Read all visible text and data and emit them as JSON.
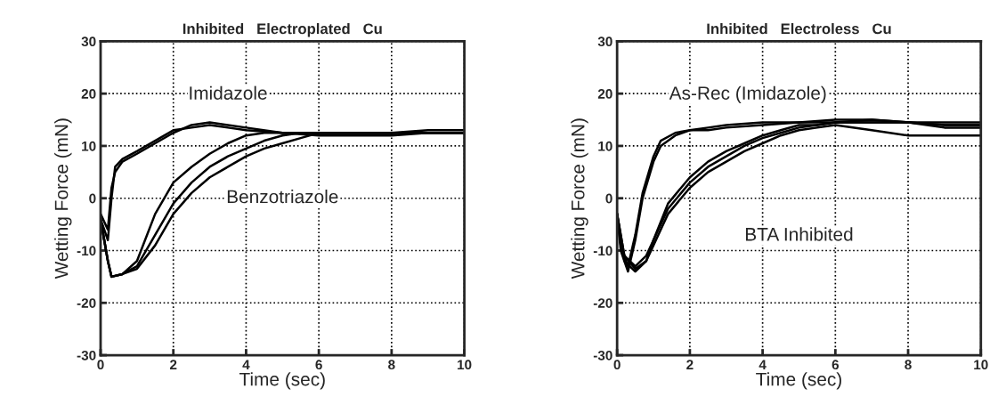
{
  "chart_data": [
    {
      "type": "line",
      "title": "Inhibited   Electroplated   Cu",
      "xlabel": "Time (sec)",
      "ylabel": "Wetting Force (mN)",
      "xlim": [
        0,
        10
      ],
      "ylim": [
        -30,
        30
      ],
      "xticks": [
        0,
        2,
        4,
        6,
        8,
        10
      ],
      "yticks": [
        -30,
        -20,
        -10,
        0,
        10,
        20,
        30
      ],
      "grid": true,
      "line_style": "solid",
      "annotations": [
        "Imidazole",
        "Benzotriazole"
      ],
      "series": [
        {
          "color": "#000000",
          "x": [
            0,
            0.2,
            0.3,
            0.4,
            0.6,
            1,
            1.5,
            2,
            2.5,
            3,
            3.5,
            4,
            5,
            6,
            7,
            8,
            9,
            10
          ],
          "values": [
            -4,
            -8,
            0,
            6,
            7.5,
            9,
            11,
            13,
            13.5,
            14,
            13.5,
            13,
            12.5,
            12.5,
            12.5,
            12.5,
            13,
            13
          ]
        },
        {
          "color": "#000000",
          "x": [
            0,
            0.2,
            0.3,
            0.4,
            0.6,
            1,
            1.5,
            2,
            2.5,
            3,
            3.5,
            4,
            5,
            6,
            7,
            8,
            9,
            10
          ],
          "values": [
            -3,
            -6,
            2,
            5,
            7,
            8.5,
            10.5,
            12.5,
            14,
            14.5,
            14,
            13.5,
            12.5,
            12,
            12,
            12,
            12.5,
            12.5
          ]
        },
        {
          "color": "#000000",
          "x": [
            0,
            0.2,
            0.3,
            0.6,
            1,
            1.5,
            2,
            2.5,
            3,
            3.5,
            4,
            4.5,
            5,
            6,
            8,
            10
          ],
          "values": [
            -4,
            -12,
            -15,
            -14.5,
            -12,
            -3,
            3,
            6,
            8.5,
            10.5,
            12,
            12.5,
            12.5,
            12.5,
            12.5,
            12.5
          ]
        },
        {
          "color": "#000000",
          "x": [
            0,
            0.2,
            0.3,
            0.6,
            1,
            1.5,
            2,
            2.5,
            3,
            3.5,
            4,
            4.5,
            5,
            5.5,
            6,
            8,
            10
          ],
          "values": [
            -4,
            -12,
            -15,
            -14.5,
            -13,
            -7,
            -1,
            3,
            6,
            8,
            9.5,
            11,
            12,
            12.5,
            12.5,
            12.5,
            12.5
          ]
        },
        {
          "color": "#000000",
          "x": [
            0,
            0.2,
            0.3,
            0.6,
            1,
            1.5,
            2,
            2.5,
            3,
            3.5,
            4,
            4.5,
            5,
            5.5,
            6,
            6.5,
            8,
            10
          ],
          "values": [
            -4,
            -12,
            -15,
            -14.5,
            -13.5,
            -9,
            -3,
            1,
            4,
            6,
            8,
            9.5,
            10.5,
            11.5,
            12.5,
            12.5,
            12.5,
            12.5
          ]
        }
      ]
    },
    {
      "type": "line",
      "title": "Inhibited   Electroless   Cu",
      "xlabel": "Time (sec)",
      "ylabel": "Wetting Force (mN)",
      "xlim": [
        0,
        10
      ],
      "ylim": [
        -30,
        30
      ],
      "xticks": [
        0,
        2,
        4,
        6,
        8,
        10
      ],
      "yticks": [
        -30,
        -20,
        -10,
        0,
        10,
        20,
        30
      ],
      "grid": true,
      "line_style": "solid",
      "annotations": [
        "As-Rec (Imidazole)",
        "BTA Inhibited"
      ],
      "series": [
        {
          "color": "#000000",
          "x": [
            0,
            0.1,
            0.3,
            0.5,
            0.7,
            1,
            1.2,
            1.6,
            2,
            2.5,
            3,
            4,
            5,
            6,
            7,
            8,
            9,
            10
          ],
          "values": [
            -3,
            -10,
            -14,
            -8,
            0,
            7,
            10,
            12,
            13,
            13.5,
            14,
            14.5,
            14.5,
            14.5,
            14.5,
            14.5,
            14,
            14
          ]
        },
        {
          "color": "#000000",
          "x": [
            0,
            0.1,
            0.3,
            0.5,
            0.7,
            1,
            1.2,
            1.6,
            2,
            2.5,
            3,
            4,
            5,
            6,
            7,
            8,
            9,
            10
          ],
          "values": [
            -3,
            -9,
            -13,
            -7,
            1,
            8,
            11,
            12.5,
            13,
            13,
            13.5,
            14,
            14.5,
            15,
            15,
            14.5,
            13.5,
            13.5
          ]
        },
        {
          "color": "#000000",
          "x": [
            0,
            0.2,
            0.5,
            0.8,
            1,
            1.4,
            2,
            2.5,
            3,
            3.5,
            4,
            4.5,
            5,
            5.5,
            6,
            7,
            8,
            9,
            10
          ],
          "values": [
            -3,
            -11,
            -13,
            -11,
            -8,
            -2,
            3,
            6,
            8,
            10,
            11.5,
            12.5,
            13.5,
            14,
            14.5,
            14.5,
            14.5,
            14,
            14
          ]
        },
        {
          "color": "#000000",
          "x": [
            0,
            0.2,
            0.5,
            0.8,
            1,
            1.4,
            2,
            2.5,
            3,
            3.5,
            4,
            4.5,
            5,
            5.5,
            6,
            7,
            8,
            9,
            10
          ],
          "values": [
            -3,
            -12,
            -14,
            -12,
            -9,
            -3,
            2,
            5,
            7,
            9,
            10.5,
            12,
            13,
            13.5,
            14,
            13,
            12,
            12,
            12
          ]
        },
        {
          "color": "#000000",
          "x": [
            0,
            0.2,
            0.5,
            0.8,
            1,
            1.4,
            2,
            2.5,
            3,
            3.5,
            4,
            4.5,
            5,
            5.5,
            6,
            7,
            8,
            9,
            10
          ],
          "values": [
            -3,
            -11,
            -13.5,
            -12,
            -8,
            -1,
            4,
            7,
            9,
            10.5,
            12,
            13,
            14,
            14,
            14.5,
            15,
            14.5,
            14.5,
            14.5
          ]
        }
      ]
    }
  ]
}
